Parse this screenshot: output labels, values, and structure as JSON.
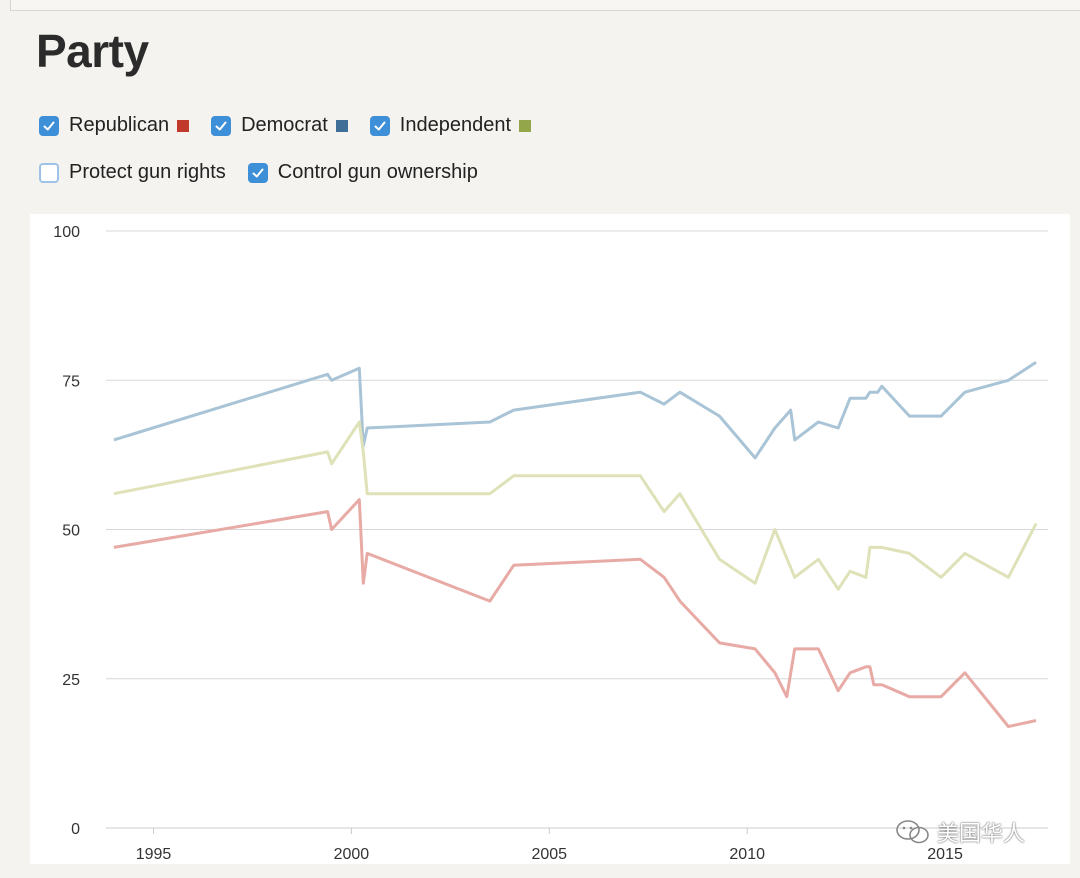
{
  "title": "Party",
  "filters": {
    "party": [
      {
        "label": "Republican",
        "checked": true,
        "color": "#c0392b"
      },
      {
        "label": "Democrat",
        "checked": true,
        "color": "#3f6e96"
      },
      {
        "label": "Independent",
        "checked": true,
        "color": "#93a64a"
      }
    ],
    "stance": [
      {
        "label": "Protect gun rights",
        "checked": false
      },
      {
        "label": "Control gun ownership",
        "checked": true
      }
    ]
  },
  "watermark": "美国华人",
  "chart_data": {
    "type": "line",
    "title": "",
    "xlabel": "",
    "ylabel": "",
    "xlim": [
      1993.8,
      2017.6
    ],
    "ylim": [
      0,
      100
    ],
    "yticks": [
      0,
      25,
      50,
      75,
      100
    ],
    "xticks": [
      1995,
      2000,
      2005,
      2010,
      2015
    ],
    "grid": true,
    "series": [
      {
        "name": "Democrat",
        "color": "#a9c4d6",
        "points": [
          [
            1994,
            65
          ],
          [
            1999.4,
            76
          ],
          [
            1999.5,
            75
          ],
          [
            2000.2,
            77
          ],
          [
            2000.3,
            64
          ],
          [
            2000.4,
            67
          ],
          [
            2003.5,
            68
          ],
          [
            2004.1,
            70
          ],
          [
            2007.3,
            73
          ],
          [
            2007.9,
            71
          ],
          [
            2008.3,
            73
          ],
          [
            2009.3,
            69
          ],
          [
            2010.2,
            62
          ],
          [
            2010.7,
            67
          ],
          [
            2011.1,
            70
          ],
          [
            2011.2,
            65
          ],
          [
            2011.8,
            68
          ],
          [
            2012.3,
            67
          ],
          [
            2012.6,
            72
          ],
          [
            2013.0,
            72
          ],
          [
            2013.1,
            73
          ],
          [
            2013.3,
            73
          ],
          [
            2013.4,
            74
          ],
          [
            2014.1,
            69
          ],
          [
            2014.9,
            69
          ],
          [
            2015.5,
            73
          ],
          [
            2016.6,
            75
          ],
          [
            2017.3,
            78
          ]
        ]
      },
      {
        "name": "Independent",
        "color": "#dfe2b8",
        "points": [
          [
            1994,
            56
          ],
          [
            1999.4,
            63
          ],
          [
            1999.5,
            61
          ],
          [
            2000.2,
            68
          ],
          [
            2000.3,
            63
          ],
          [
            2000.4,
            56
          ],
          [
            2003.5,
            56
          ],
          [
            2004.1,
            59
          ],
          [
            2007.3,
            59
          ],
          [
            2007.9,
            53
          ],
          [
            2008.3,
            56
          ],
          [
            2009.3,
            45
          ],
          [
            2010.2,
            41
          ],
          [
            2010.7,
            50
          ],
          [
            2011.2,
            42
          ],
          [
            2011.8,
            45
          ],
          [
            2012.3,
            40
          ],
          [
            2012.6,
            43
          ],
          [
            2013.0,
            42
          ],
          [
            2013.1,
            47
          ],
          [
            2013.4,
            47
          ],
          [
            2014.1,
            46
          ],
          [
            2014.9,
            42
          ],
          [
            2015.5,
            46
          ],
          [
            2016.6,
            42
          ],
          [
            2017.3,
            51
          ]
        ]
      },
      {
        "name": "Republican",
        "color": "#e8aaa5",
        "points": [
          [
            1994,
            47
          ],
          [
            1999.4,
            53
          ],
          [
            1999.5,
            50
          ],
          [
            2000.2,
            55
          ],
          [
            2000.3,
            41
          ],
          [
            2000.4,
            46
          ],
          [
            2003.5,
            38
          ],
          [
            2004.1,
            44
          ],
          [
            2007.3,
            45
          ],
          [
            2007.9,
            42
          ],
          [
            2008.3,
            38
          ],
          [
            2009.3,
            31
          ],
          [
            2010.2,
            30
          ],
          [
            2010.7,
            26
          ],
          [
            2011.0,
            22
          ],
          [
            2011.2,
            30
          ],
          [
            2011.8,
            30
          ],
          [
            2012.3,
            23
          ],
          [
            2012.6,
            26
          ],
          [
            2013.0,
            27
          ],
          [
            2013.1,
            27
          ],
          [
            2013.2,
            24
          ],
          [
            2013.4,
            24
          ],
          [
            2014.1,
            22
          ],
          [
            2014.9,
            22
          ],
          [
            2015.5,
            26
          ],
          [
            2016.6,
            17
          ],
          [
            2017.3,
            18
          ]
        ]
      }
    ]
  }
}
